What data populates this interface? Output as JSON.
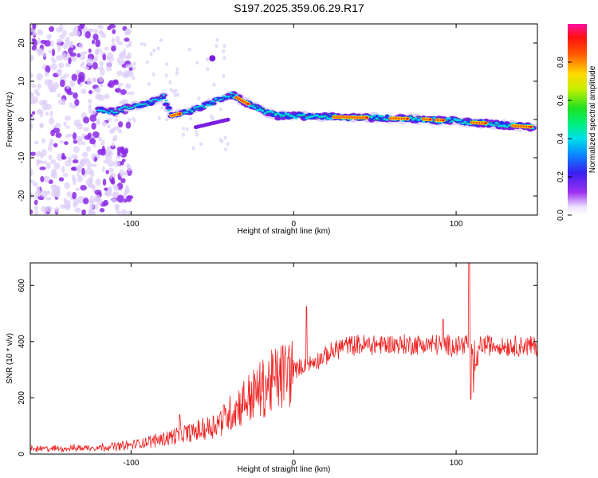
{
  "title": "S197.2025.359.06.29.R17",
  "colors": {
    "snr_line": "#ee2222",
    "axis": "#000000",
    "spectro_low": "#e6dcfa",
    "spectro_mid": "#7a1ee0"
  },
  "chart_data": [
    {
      "type": "heatmap",
      "name": "spectrogram",
      "xlabel": "Height of straight line (km)",
      "ylabel": "Frequency (Hz)",
      "xlim": [
        -162,
        150
      ],
      "ylim": [
        -25,
        25
      ],
      "xticks": [
        -100,
        0,
        100
      ],
      "xtick_labels": [
        "-100",
        "0",
        "100"
      ],
      "yticks": [
        -20,
        -10,
        0,
        10,
        20
      ],
      "ytick_labels": [
        "-20",
        "-10",
        "0",
        "10",
        "20"
      ],
      "colorbar": {
        "label": "Normalized spectral amplitude",
        "range": [
          0.0,
          1.0
        ],
        "ticks": [
          0.0,
          0.2,
          0.4,
          0.6,
          0.8
        ],
        "tick_labels": [
          "0.0",
          "0.2",
          "0.4",
          "0.6",
          "0.8"
        ],
        "colormap": "rainbow (violet → blue → cyan → green → yellow → red → magenta)"
      },
      "ridge": {
        "x": [
          -120,
          -110,
          -100,
          -90,
          -80,
          -75,
          -65,
          -55,
          -45,
          -38,
          -30,
          -20,
          -10,
          0,
          10,
          20,
          30,
          40,
          50,
          60,
          70,
          80,
          90,
          100,
          110,
          120,
          130,
          148
        ],
        "frequency": [
          2.5,
          2.0,
          3.5,
          4.0,
          6.0,
          1.0,
          2.0,
          3.5,
          5.5,
          6.5,
          4.5,
          2.5,
          1.0,
          1.0,
          0.8,
          0.7,
          0.6,
          0.5,
          0.5,
          0.3,
          0.2,
          0.1,
          -0.2,
          -0.3,
          -0.8,
          -1.0,
          -1.5,
          -2.0
        ]
      },
      "noise_region_x": [
        -162,
        -100
      ]
    },
    {
      "type": "line",
      "name": "snr",
      "xlabel": "Height of straight line (km)",
      "ylabel": "SNR (10 * v/v)",
      "xlim": [
        -162,
        150
      ],
      "ylim": [
        0,
        680
      ],
      "xticks": [
        -100,
        0,
        100
      ],
      "xtick_labels": [
        "-100",
        "0",
        "100"
      ],
      "yticks": [
        0,
        200,
        400,
        600
      ],
      "ytick_labels": [
        "0",
        "200",
        "400",
        "600"
      ],
      "envelope": {
        "x": [
          -162,
          -140,
          -120,
          -100,
          -80,
          -70,
          -60,
          -50,
          -40,
          -30,
          -20,
          -10,
          0,
          10,
          20,
          30,
          50,
          70,
          90,
          100,
          107,
          110,
          115,
          130,
          150
        ],
        "y": [
          18,
          20,
          24,
          32,
          55,
          70,
          80,
          100,
          140,
          190,
          230,
          270,
          300,
          320,
          350,
          385,
          390,
          390,
          390,
          385,
          400,
          260,
          390,
          385,
          385
        ]
      },
      "spikes": [
        {
          "x": -70,
          "y": 140
        },
        {
          "x": 8,
          "y": 525
        },
        {
          "x": 92,
          "y": 480
        },
        {
          "x": 108,
          "y": 680
        },
        {
          "x": 109,
          "y": 195
        }
      ]
    }
  ]
}
